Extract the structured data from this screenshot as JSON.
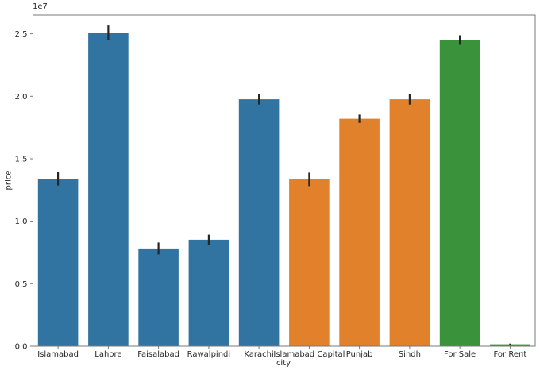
{
  "figure": {
    "background": "#ffffff"
  },
  "chart_data": {
    "type": "bar",
    "title": "",
    "xlabel": "city",
    "ylabel": "price",
    "y_offset_text": "1e7",
    "ylim": [
      0,
      26500000
    ],
    "yticks": [
      0,
      5000000,
      10000000,
      15000000,
      20000000,
      25000000
    ],
    "ytick_labels": [
      "0.0",
      "0.5",
      "1.0",
      "1.5",
      "2.0",
      "2.5"
    ],
    "categories": [
      "Islamabad",
      "Lahore",
      "Faisalabad",
      "Rawalpindi",
      "Karachi",
      "Islamabad Capital",
      "Punjab",
      "Sindh",
      "For Sale",
      "For Rent"
    ],
    "values": [
      13400000,
      25100000,
      7820000,
      8520000,
      19760000,
      13350000,
      18200000,
      19760000,
      24500000,
      150000
    ],
    "errors": [
      540000,
      570000,
      480000,
      400000,
      420000,
      540000,
      330000,
      420000,
      380000,
      60000
    ],
    "bar_colors": [
      "#3274a1",
      "#3274a1",
      "#3274a1",
      "#3274a1",
      "#3274a1",
      "#e1812c",
      "#e1812c",
      "#e1812c",
      "#3a923a",
      "#3a923a"
    ],
    "color_groups": {
      "city_blue": "#3274a1",
      "province_orange": "#e1812c",
      "purpose_green": "#3a923a"
    },
    "error_color": "#262626",
    "axis_color": "#787878",
    "text_color": "#262626",
    "grid": false,
    "legend_position": "none",
    "bar_width_fraction": 0.8
  }
}
